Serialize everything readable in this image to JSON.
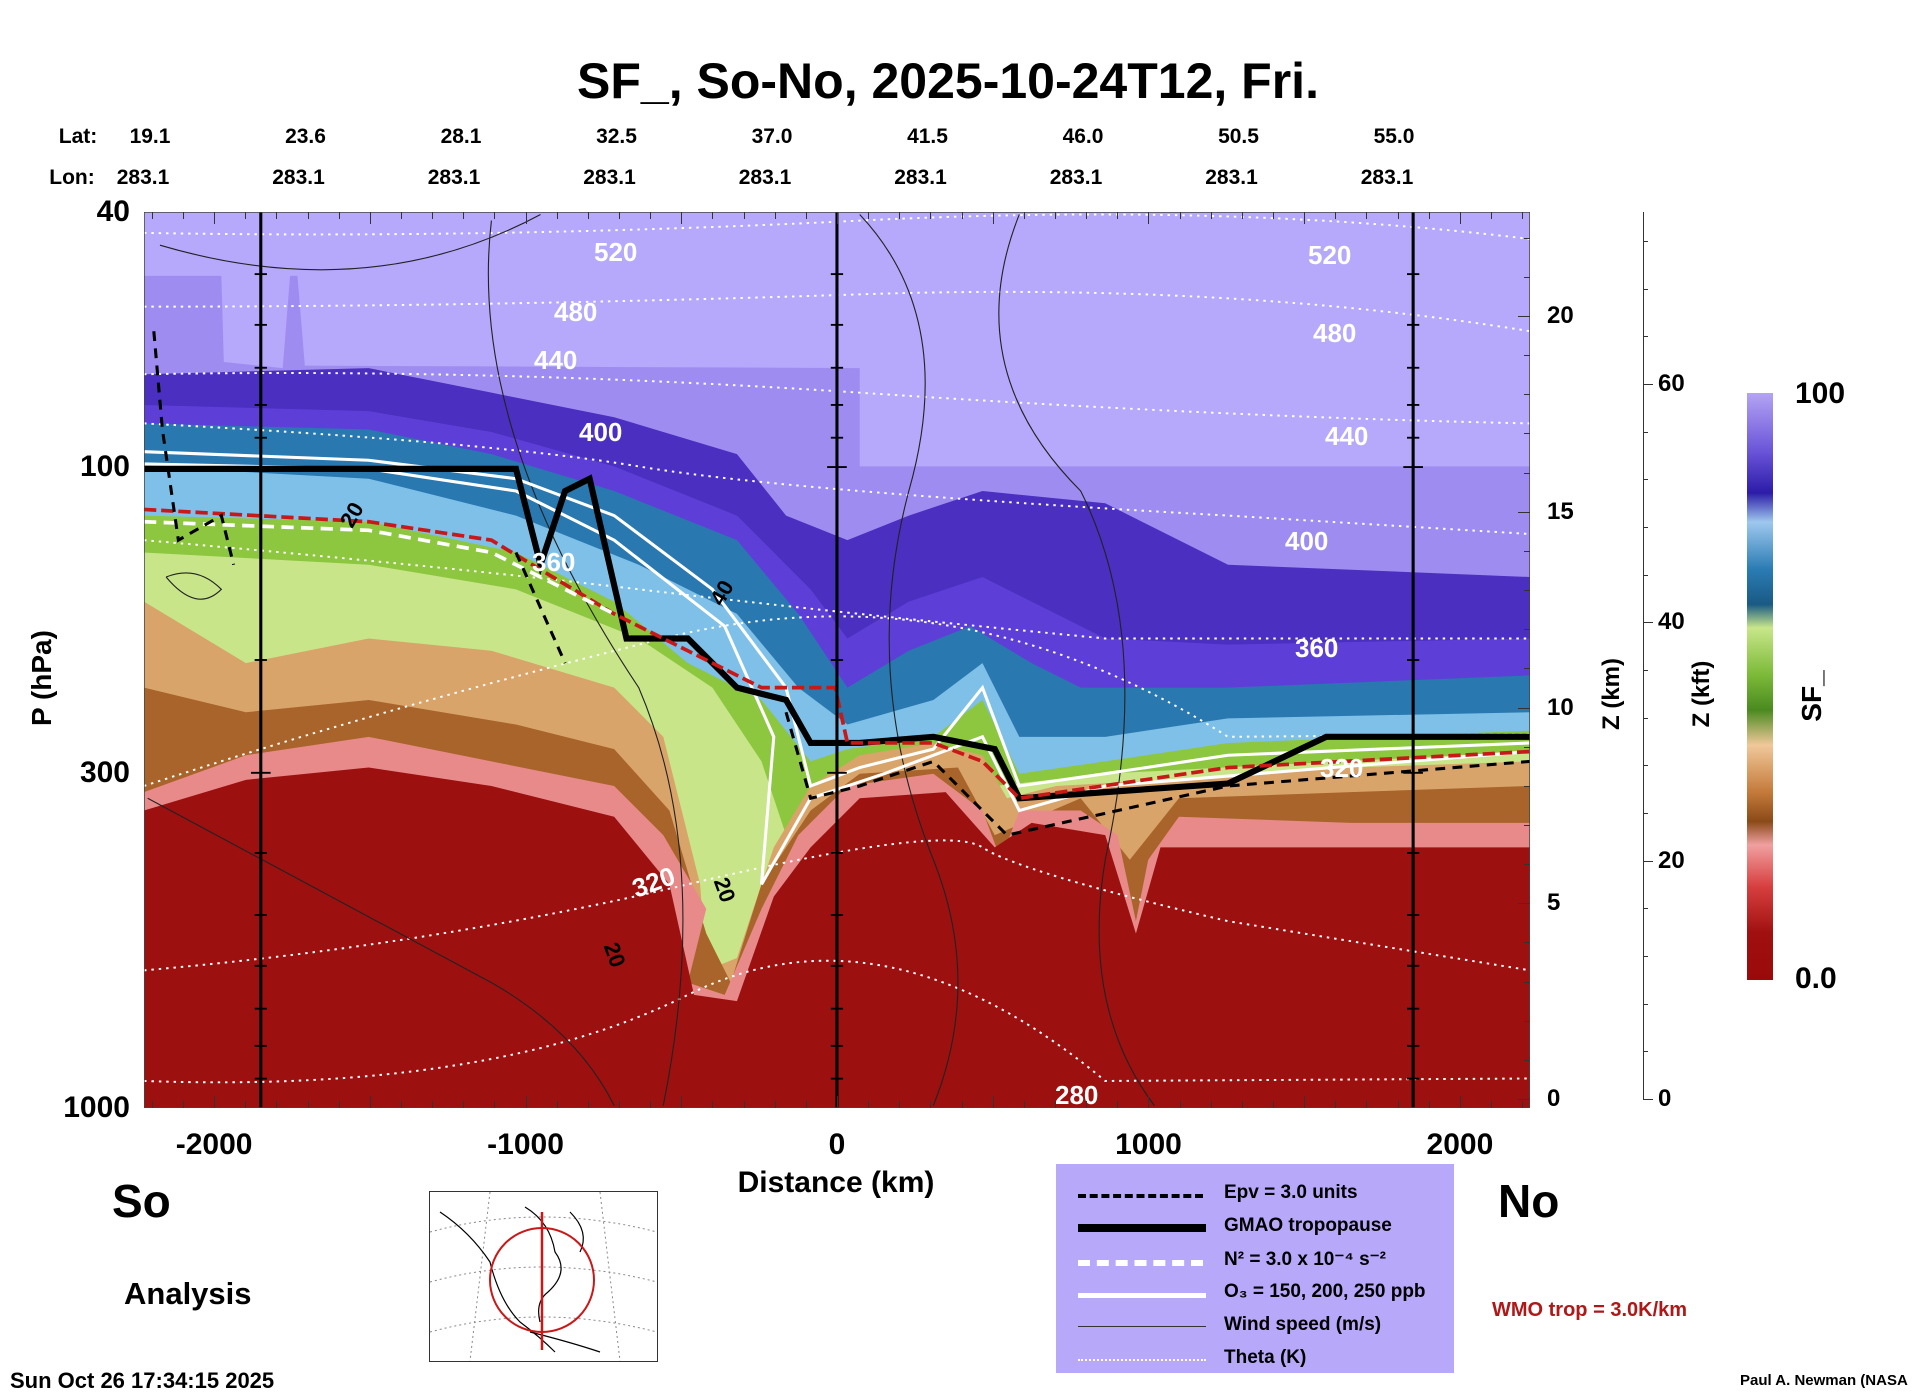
{
  "title": "SF_, So-No, 2025-10-24T12, Fri.",
  "lat_label": "Lat:",
  "lon_label": "Lon:",
  "lat": [
    "19.1",
    "23.6",
    "28.1",
    "32.5",
    "37.0",
    "41.5",
    "46.0",
    "50.5",
    "55.0"
  ],
  "lon": [
    "283.1",
    "283.1",
    "283.1",
    "283.1",
    "283.1",
    "283.1",
    "283.1",
    "283.1",
    "283.1"
  ],
  "left_end": "So",
  "right_end": "No",
  "analysis_label": "Analysis",
  "timestamp": "Sun Oct 26 17:34:15 2025",
  "credit": "Paul A. Newman (NASA",
  "wmo_note": "WMO trop = 3.0K/km",
  "legend": [
    {
      "label": "Epv = 3.0 units",
      "style": "dashed-black"
    },
    {
      "label": "GMAO tropopause",
      "style": "thick-black"
    },
    {
      "label": "N² = 3.0 x 10⁻⁴ s⁻²",
      "style": "dashed-white"
    },
    {
      "label": "O₃ = 150, 200, 250 ppb",
      "style": "solid-white"
    },
    {
      "label": "Wind speed (m/s)",
      "style": "thin-black"
    },
    {
      "label": "Theta (K)",
      "style": "dotted-white"
    }
  ],
  "colors": {
    "wmo": "#b01818",
    "legend_bg": "#b8a8fa"
  },
  "chart_data": {
    "type": "heatmap",
    "title": "SF_, So-No, 2025-10-24T12, Fri.",
    "xlabel": "Distance (km)",
    "ylabel": "P (hPa)",
    "y2label": "Z (km)",
    "y3label": "Z (kft)",
    "colorbar_label": "SF_",
    "colorbar_range": [
      0.0,
      100
    ],
    "colorbar_ticks": [
      "100",
      "0.0"
    ],
    "xlim": [
      -2225,
      2225
    ],
    "ylim": [
      1000,
      40
    ],
    "yscale": "log",
    "x_ticks": [
      {
        "v": -2000,
        "t": "-2000"
      },
      {
        "v": -1000,
        "t": "-1000"
      },
      {
        "v": 0,
        "t": "0"
      },
      {
        "v": 1000,
        "t": "1000"
      },
      {
        "v": 2000,
        "t": "2000"
      }
    ],
    "y_ticks": [
      {
        "v": 40,
        "t": "40"
      },
      {
        "v": 100,
        "t": "100"
      },
      {
        "v": 300,
        "t": "300"
      },
      {
        "v": 1000,
        "t": "1000"
      }
    ],
    "z_km_ticks": [
      {
        "v": 20,
        "t": "20"
      },
      {
        "v": 15,
        "t": "15"
      },
      {
        "v": 10,
        "t": "10"
      },
      {
        "v": 5,
        "t": "5"
      },
      {
        "v": 0,
        "t": "0"
      }
    ],
    "z_kft_ticks": [
      {
        "v": 60,
        "t": "60"
      },
      {
        "v": 40,
        "t": "40"
      },
      {
        "v": 20,
        "t": "20"
      },
      {
        "v": 0,
        "t": "0"
      }
    ],
    "theta_labels": [
      "520",
      "480",
      "440",
      "400",
      "360",
      "320",
      "280",
      "520",
      "480",
      "440",
      "400",
      "360",
      "320"
    ],
    "wind_labels": [
      "20",
      "40",
      "20",
      "20"
    ],
    "markers_km": [
      -1850,
      0,
      1850
    ]
  }
}
